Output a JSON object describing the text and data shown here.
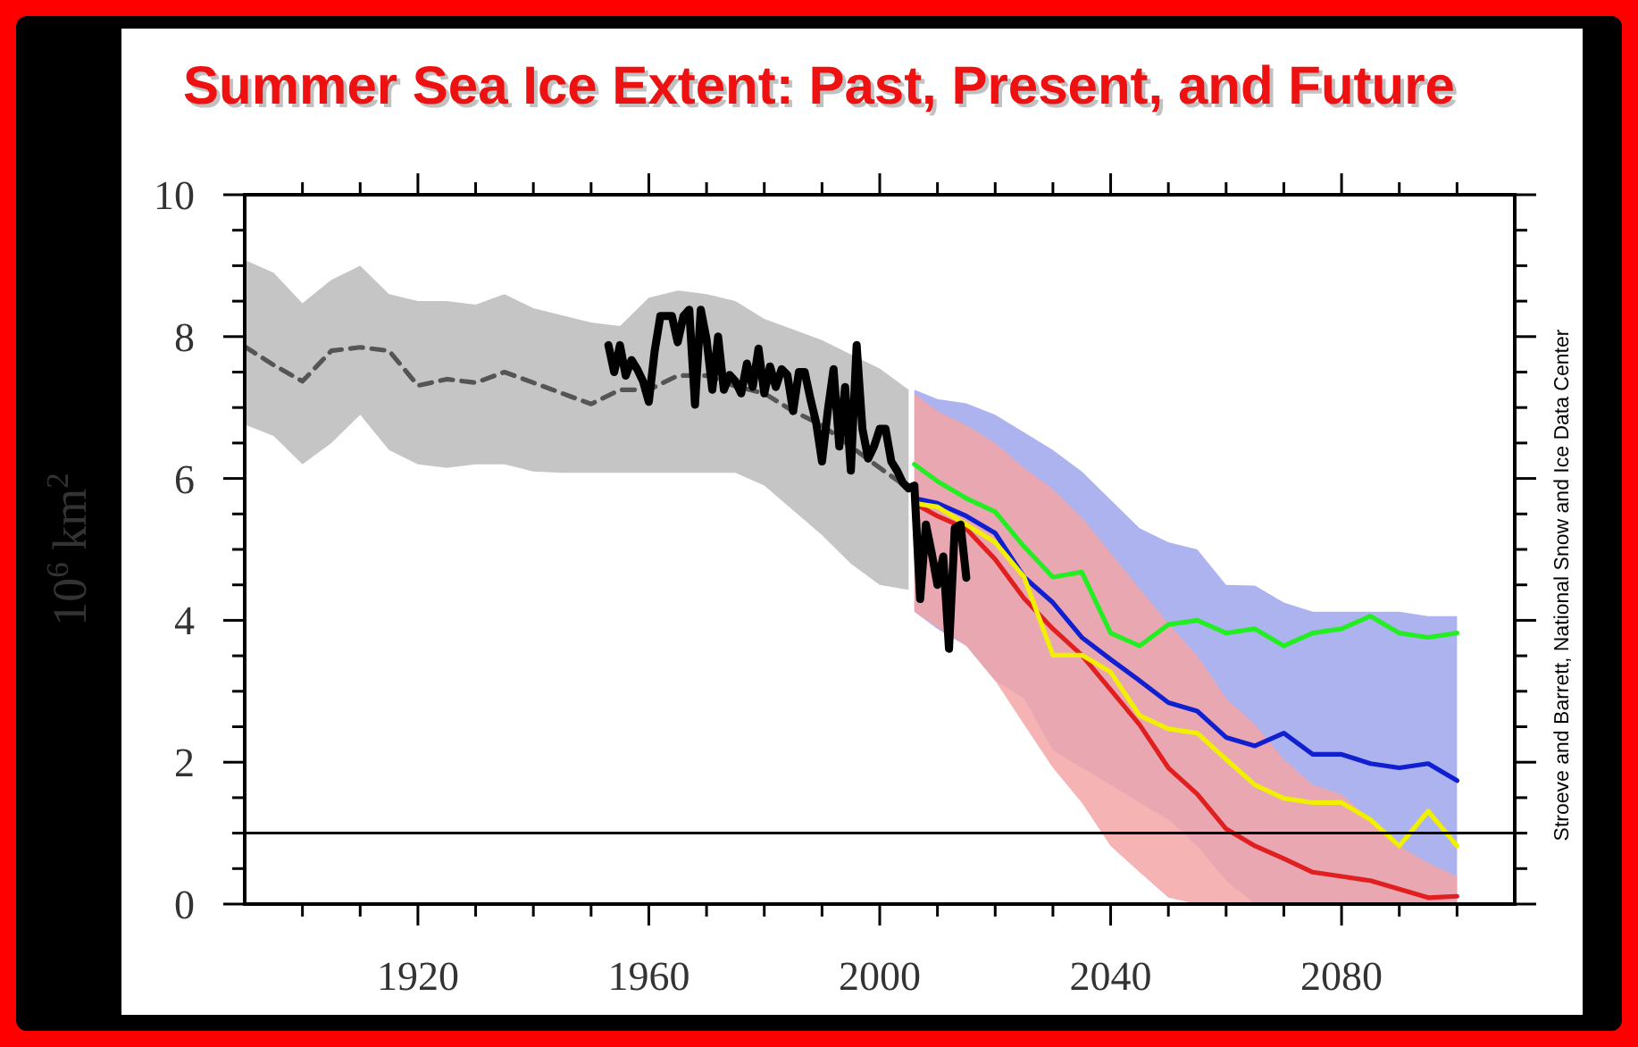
{
  "chart_data": {
    "type": "line",
    "title": "Summer Sea Ice Extent: Past, Present, and Future",
    "ylabel": "10$^{6}$ km$^{2}$",
    "annotations": [
      "Stroeve and Barrett, National Snow and Ice Data Center"
    ],
    "xlim": [
      1890,
      2110
    ],
    "xticks": [
      {
        "value": 1900,
        "label": null
      },
      {
        "value": 1910,
        "label": null
      },
      1920,
      {
        "value": 1930,
        "label": null
      },
      {
        "value": 1940,
        "label": null
      },
      {
        "value": 1950,
        "label": null
      },
      1960,
      {
        "value": 1970,
        "label": null
      },
      {
        "value": 1980,
        "label": null
      },
      {
        "value": 1990,
        "label": null
      },
      2000,
      {
        "value": 2010,
        "label": null
      },
      {
        "value": 2020,
        "label": null
      },
      {
        "value": 2030,
        "label": null
      },
      2040,
      {
        "value": 2050,
        "label": null
      },
      {
        "value": 2060,
        "label": null
      },
      {
        "value": 2070,
        "label": null
      },
      2080,
      {
        "value": 2090,
        "label": null
      },
      {
        "value": 2100,
        "label": null
      }
    ],
    "ylim": [
      0,
      10
    ],
    "yticks": [
      0,
      {
        "value": 0.5,
        "label": null
      },
      {
        "value": 1,
        "label": null
      },
      {
        "value": 1.5,
        "label": null
      },
      2,
      {
        "value": 2.5,
        "label": null
      },
      {
        "value": 3,
        "label": null
      },
      {
        "value": 3.5,
        "label": null
      },
      4,
      {
        "value": 4.5,
        "label": null
      },
      {
        "value": 5,
        "label": null
      },
      {
        "value": 5.5,
        "label": null
      },
      6,
      {
        "value": 6.5,
        "label": null
      },
      {
        "value": 7,
        "label": null
      },
      {
        "value": 7.5,
        "label": null
      },
      8,
      {
        "value": 8.5,
        "label": null
      },
      {
        "value": 9,
        "label": null
      },
      {
        "value": 9.5,
        "label": null
      },
      10
    ],
    "grid": false,
    "marker": "none",
    "ref_lines": [
      {
        "axis": "y",
        "value": 1,
        "color": "#000000"
      }
    ],
    "series": [
      {
        "color": "#555555",
        "line_style": "dashed",
        "x": [
          1890,
          1895,
          1900,
          1905,
          1910,
          1915,
          1920,
          1925,
          1930,
          1935,
          1940,
          1945,
          1950,
          1955,
          1960,
          1965,
          1970,
          1975,
          1980,
          1985,
          1990,
          1995,
          2000,
          2005
        ],
        "values": [
          7.86,
          7.6,
          7.37,
          7.8,
          7.85,
          7.8,
          7.31,
          7.4,
          7.35,
          7.5,
          7.35,
          7.2,
          7.05,
          7.25,
          7.25,
          7.45,
          7.45,
          7.3,
          7.2,
          6.95,
          6.75,
          6.45,
          6.15,
          5.86
        ],
        "upper": [
          9.08,
          8.9,
          8.47,
          8.8,
          9.0,
          8.6,
          8.5,
          8.5,
          8.45,
          8.6,
          8.4,
          8.3,
          8.2,
          8.15,
          8.55,
          8.65,
          8.6,
          8.5,
          8.25,
          8.1,
          7.95,
          7.75,
          7.55,
          7.25
        ],
        "lower": [
          6.76,
          6.6,
          6.2,
          6.5,
          6.9,
          6.4,
          6.2,
          6.15,
          6.2,
          6.2,
          6.1,
          6.08,
          6.08,
          6.08,
          6.08,
          6.08,
          6.08,
          6.08,
          5.9,
          5.55,
          5.2,
          4.8,
          4.5,
          4.43
        ]
      },
      {
        "color": "#1020d0",
        "x": [
          2006,
          2010,
          2015,
          2020,
          2025,
          2030,
          2035,
          2040,
          2045,
          2050,
          2055,
          2060,
          2065,
          2070,
          2075,
          2080,
          2085,
          2090,
          2095,
          2100
        ],
        "values": [
          5.72,
          5.65,
          5.47,
          5.23,
          4.61,
          4.25,
          3.76,
          3.45,
          3.15,
          2.84,
          2.72,
          2.35,
          2.23,
          2.41,
          2.11,
          2.11,
          1.98,
          1.92,
          1.98,
          1.74
        ],
        "upper": [
          7.25,
          7.12,
          7.06,
          6.9,
          6.65,
          6.4,
          6.1,
          5.7,
          5.3,
          5.1,
          5.0,
          4.5,
          4.49,
          4.25,
          4.12,
          4.12,
          4.12,
          4.12,
          4.06,
          4.06
        ],
        "lower": [
          4.12,
          3.88,
          3.64,
          3.15,
          2.9,
          2.17,
          1.92,
          1.68,
          1.43,
          1.19,
          0.82,
          0.33,
          0,
          0,
          0,
          0,
          0,
          0,
          0,
          0
        ]
      },
      {
        "color": "#e02020",
        "x": [
          2006,
          2010,
          2015,
          2020,
          2025,
          2030,
          2035,
          2040,
          2045,
          2050,
          2055,
          2060,
          2065,
          2070,
          2075,
          2080,
          2085,
          2090,
          2095,
          2100
        ],
        "values": [
          5.65,
          5.47,
          5.29,
          4.86,
          4.31,
          3.88,
          3.51,
          3.02,
          2.53,
          1.92,
          1.55,
          1.06,
          0.82,
          0.64,
          0.45,
          0.39,
          0.33,
          0.21,
          0.09,
          0.11
        ],
        "upper": [
          7.2,
          6.95,
          6.75,
          6.5,
          6.15,
          5.85,
          5.45,
          4.95,
          4.45,
          3.95,
          3.5,
          2.9,
          2.53,
          2.04,
          1.68,
          1.55,
          1.19,
          0.82,
          0.58,
          0.39
        ],
        "lower": [
          4.12,
          3.9,
          3.64,
          3.15,
          2.53,
          1.92,
          1.43,
          0.82,
          0.45,
          0.09,
          0,
          0,
          0,
          0,
          0,
          0,
          0,
          0,
          0,
          0
        ]
      },
      {
        "color": "#22ee22",
        "x": [
          2006,
          2010,
          2015,
          2020,
          2025,
          2030,
          2035,
          2040,
          2045,
          2050,
          2055,
          2060,
          2065,
          2070,
          2075,
          2080,
          2085,
          2090,
          2095,
          2100
        ],
        "values": [
          6.2,
          5.96,
          5.72,
          5.53,
          5.04,
          4.61,
          4.68,
          3.82,
          3.64,
          3.94,
          4.0,
          3.82,
          3.88,
          3.64,
          3.82,
          3.88,
          4.06,
          3.82,
          3.76,
          3.82
        ]
      },
      {
        "color": "#f0f000",
        "x": [
          2006,
          2010,
          2015,
          2020,
          2025,
          2030,
          2035,
          2040,
          2045,
          2050,
          2055,
          2060,
          2065,
          2070,
          2075,
          2080,
          2085,
          2090,
          2095,
          2100
        ],
        "values": [
          5.65,
          5.6,
          5.35,
          5.1,
          4.61,
          3.51,
          3.51,
          3.27,
          2.66,
          2.47,
          2.41,
          2.04,
          1.68,
          1.49,
          1.43,
          1.43,
          1.19,
          0.82,
          1.31,
          0.82
        ]
      },
      {
        "color": "#000000",
        "x": [
          1953,
          1954,
          1955,
          1956,
          1957,
          1958,
          1959,
          1960,
          1961,
          1962,
          1963,
          1964,
          1965,
          1966,
          1967,
          1968,
          1969,
          1970,
          1971,
          1972,
          1973,
          1974,
          1975,
          1976,
          1977,
          1978,
          1979,
          1980,
          1981,
          1982,
          1983,
          1984,
          1985,
          1986,
          1987,
          1988,
          1989,
          1990,
          1991,
          1992,
          1993,
          1994,
          1995,
          1996,
          1997,
          1998,
          1999,
          2000,
          2001,
          2002,
          2003,
          2004,
          2005,
          2006,
          2007,
          2008,
          2009,
          2010,
          2011,
          2012,
          2013,
          2014,
          2015
        ],
        "values": [
          7.88,
          7.5,
          7.88,
          7.45,
          7.67,
          7.54,
          7.37,
          7.08,
          7.79,
          8.29,
          8.29,
          8.29,
          7.92,
          8.29,
          8.38,
          7.04,
          8.38,
          7.96,
          7.25,
          8.0,
          7.25,
          7.46,
          7.37,
          7.2,
          7.62,
          7.29,
          7.83,
          7.2,
          7.58,
          7.29,
          7.54,
          7.46,
          6.95,
          7.5,
          7.5,
          7.12,
          6.78,
          6.24,
          6.95,
          7.54,
          6.45,
          7.29,
          6.11,
          7.88,
          6.7,
          6.28,
          6.45,
          6.7,
          6.7,
          6.24,
          6.11,
          5.94,
          5.86,
          5.9,
          4.3,
          5.35,
          4.95,
          4.5,
          4.9,
          3.6,
          5.3,
          5.35,
          4.6
        ]
      }
    ]
  }
}
